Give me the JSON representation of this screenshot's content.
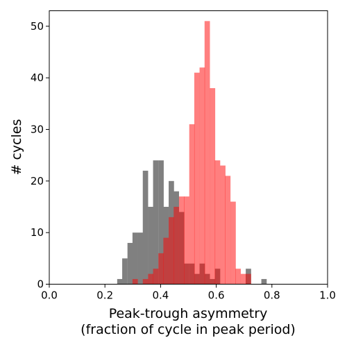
{
  "chart_data": {
    "type": "bar",
    "xlabel_lines": [
      "Peak-trough asymmetry",
      "(fraction of cycle in peak period)"
    ],
    "ylabel": "# cycles",
    "xlim": [
      0.0,
      1.0
    ],
    "ylim": [
      0,
      53
    ],
    "xticks": [
      "0.0",
      "0.2",
      "0.4",
      "0.6",
      "0.8",
      "1.0"
    ],
    "xtick_values": [
      0.0,
      0.2,
      0.4,
      0.6,
      0.8,
      1.0
    ],
    "yticks": [
      "0",
      "10",
      "20",
      "30",
      "40",
      "50"
    ],
    "ytick_values": [
      0,
      10,
      20,
      30,
      40,
      50
    ],
    "grid": false,
    "series": [
      {
        "color": "#808080",
        "bin_width": 0.0185,
        "bin_starts": [
          0.244,
          0.262,
          0.281,
          0.299,
          0.318,
          0.336,
          0.355,
          0.373,
          0.392,
          0.41,
          0.429,
          0.447,
          0.466,
          0.484,
          0.503,
          0.521,
          0.54,
          0.558,
          0.577,
          0.595,
          0.614,
          0.632,
          0.651,
          0.669,
          0.688,
          0.706,
          0.725,
          0.743,
          0.762
        ],
        "values": [
          1,
          5,
          8,
          10,
          10,
          22,
          15,
          24,
          24,
          15,
          20,
          18,
          14,
          4,
          4,
          2,
          4,
          2,
          1,
          3,
          0,
          0,
          0,
          0,
          0,
          3,
          0,
          0,
          1
        ]
      },
      {
        "color": "#ff0000",
        "opacity": 0.5,
        "bin_width": 0.0185,
        "bin_starts": [
          0.299,
          0.318,
          0.336,
          0.355,
          0.373,
          0.392,
          0.41,
          0.429,
          0.447,
          0.466,
          0.484,
          0.503,
          0.521,
          0.54,
          0.558,
          0.577,
          0.595,
          0.614,
          0.632,
          0.651,
          0.669,
          0.688,
          0.706
        ],
        "values": [
          1,
          0,
          1,
          2,
          3,
          6,
          9,
          13,
          15,
          17,
          17,
          31,
          41,
          42,
          51,
          38,
          24,
          23,
          21,
          16,
          3,
          2,
          2
        ]
      }
    ]
  }
}
